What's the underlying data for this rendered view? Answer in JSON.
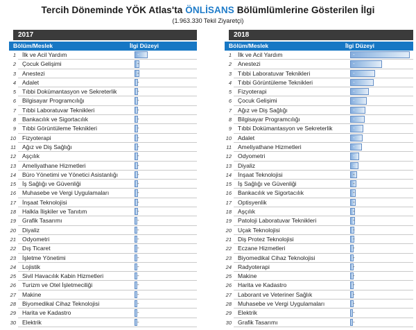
{
  "title": {
    "part1": "Tercih Döneminde YÖK Atlas'ta ",
    "accent": "ÖNLİSANS",
    "part2": " Bölümlümlerine Gösterilen İlgi"
  },
  "subtitle": "(1.963.330 Tekil Ziyaretçi)",
  "columns": {
    "department": "Bölüm/Meslek",
    "interest": "İlgi Düzeyi"
  },
  "value_placeholder": "-",
  "colors": {
    "accent": "#1F7CC9",
    "header_bg": "#1777C4",
    "year_bg": "#3B3B3B",
    "bar_border": "#638EC6",
    "row_line": "#C9C9C9"
  },
  "tables": [
    {
      "year": "2017",
      "rows": [
        {
          "rank": 1,
          "name": "İlk ve Acil Yardım",
          "pct": 21
        },
        {
          "rank": 2,
          "name": "Çocuk Gelişimi",
          "pct": 8
        },
        {
          "rank": 3,
          "name": "Anestezi",
          "pct": 8
        },
        {
          "rank": 4,
          "name": "Adalet",
          "pct": 5
        },
        {
          "rank": 5,
          "name": "Tıbbi Dokümantasyon ve Sekreterlik",
          "pct": 5
        },
        {
          "rank": 6,
          "name": "Bilgisayar Programcılığı",
          "pct": 5
        },
        {
          "rank": 7,
          "name": "Tıbbi Laboratuvar Teknikleri",
          "pct": 5
        },
        {
          "rank": 8,
          "name": "Bankacılık ve Sigortacılık",
          "pct": 5
        },
        {
          "rank": 9,
          "name": "Tıbbi Görüntüleme Teknikleri",
          "pct": 5
        },
        {
          "rank": 10,
          "name": "Fizyoterapi",
          "pct": 5
        },
        {
          "rank": 11,
          "name": "Ağız ve Diş Sağlığı",
          "pct": 5
        },
        {
          "rank": 12,
          "name": "Aşçılık",
          "pct": 5
        },
        {
          "rank": 13,
          "name": "Ameliyathane Hizmetleri",
          "pct": 5
        },
        {
          "rank": 14,
          "name": "Büro Yönetimi ve Yönetici Asistanlığı",
          "pct": 5
        },
        {
          "rank": 15,
          "name": "İş Sağlığı ve Güvenliği",
          "pct": 5
        },
        {
          "rank": 16,
          "name": "Muhasebe ve Vergi Uygulamaları",
          "pct": 5
        },
        {
          "rank": 17,
          "name": "İnşaat Teknolojisi",
          "pct": 5
        },
        {
          "rank": 18,
          "name": "Halkla İlişkiler ve Tanıtım",
          "pct": 5
        },
        {
          "rank": 19,
          "name": "Grafik Tasarımı",
          "pct": 4
        },
        {
          "rank": 20,
          "name": "Diyaliz",
          "pct": 4
        },
        {
          "rank": 21,
          "name": "Odyometri",
          "pct": 4
        },
        {
          "rank": 22,
          "name": "Dış Ticaret",
          "pct": 4
        },
        {
          "rank": 23,
          "name": "İşletme Yönetimi",
          "pct": 4
        },
        {
          "rank": 24,
          "name": "Lojistik",
          "pct": 4
        },
        {
          "rank": 25,
          "name": "Sivil Havacılık Kabin Hizmetleri",
          "pct": 4
        },
        {
          "rank": 26,
          "name": "Turizm ve Otel İşletmeciliği",
          "pct": 4
        },
        {
          "rank": 27,
          "name": "Makine",
          "pct": 4
        },
        {
          "rank": 28,
          "name": "Biyomedikal Cihaz Teknolojisi",
          "pct": 4
        },
        {
          "rank": 29,
          "name": "Harita ve Kadastro",
          "pct": 4
        },
        {
          "rank": 30,
          "name": "Elektrik",
          "pct": 4
        }
      ]
    },
    {
      "year": "2018",
      "rows": [
        {
          "rank": 1,
          "name": "İlk ve Acil Yardım",
          "pct": 94
        },
        {
          "rank": 2,
          "name": "Anestezi",
          "pct": 51
        },
        {
          "rank": 3,
          "name": "Tıbbi Laboratuvar Teknikleri",
          "pct": 40
        },
        {
          "rank": 4,
          "name": "Tıbbi Görüntüleme Teknikleri",
          "pct": 37
        },
        {
          "rank": 5,
          "name": "Fizyoterapi",
          "pct": 30
        },
        {
          "rank": 6,
          "name": "Çocuk Gelişimi",
          "pct": 26
        },
        {
          "rank": 7,
          "name": "Ağız ve Diş Sağlığı",
          "pct": 24
        },
        {
          "rank": 8,
          "name": "Bilgisayar Programcılığı",
          "pct": 23
        },
        {
          "rank": 9,
          "name": "Tıbbi Dokümantasyon ve Sekreterlik",
          "pct": 21
        },
        {
          "rank": 10,
          "name": "Adalet",
          "pct": 20
        },
        {
          "rank": 11,
          "name": "Ameliyathane Hizmetleri",
          "pct": 19
        },
        {
          "rank": 12,
          "name": "Odyometri",
          "pct": 14
        },
        {
          "rank": 13,
          "name": "Diyaliz",
          "pct": 13
        },
        {
          "rank": 14,
          "name": "İnşaat Teknolojisi",
          "pct": 11
        },
        {
          "rank": 15,
          "name": "İş Sağlığı ve Güvenliği",
          "pct": 10
        },
        {
          "rank": 16,
          "name": "Bankacılık ve Sigortacılık",
          "pct": 9
        },
        {
          "rank": 17,
          "name": "Optisyenlik",
          "pct": 9
        },
        {
          "rank": 18,
          "name": "Aşçılık",
          "pct": 8
        },
        {
          "rank": 19,
          "name": "Patoloji Laboratuvar Teknikleri",
          "pct": 8
        },
        {
          "rank": 20,
          "name": "Uçak Teknolojisi",
          "pct": 7
        },
        {
          "rank": 21,
          "name": "Diş Protez Teknolojisi",
          "pct": 7
        },
        {
          "rank": 22,
          "name": "Eczane Hizmetleri",
          "pct": 6
        },
        {
          "rank": 23,
          "name": "Biyomedikal Cihaz Teknolojisi",
          "pct": 6
        },
        {
          "rank": 24,
          "name": "Radyoterapi",
          "pct": 6
        },
        {
          "rank": 25,
          "name": "Makine",
          "pct": 5
        },
        {
          "rank": 26,
          "name": "Harita ve Kadastro",
          "pct": 5
        },
        {
          "rank": 27,
          "name": "Laborant ve Veteriner Sağlık",
          "pct": 5
        },
        {
          "rank": 28,
          "name": "Muhasebe ve Vergi Uygulamaları",
          "pct": 5
        },
        {
          "rank": 29,
          "name": "Elektrik",
          "pct": 4
        },
        {
          "rank": 30,
          "name": "Grafik Tasarımı",
          "pct": 4
        }
      ]
    }
  ],
  "chart_data": [
    {
      "type": "bar",
      "orientation": "horizontal",
      "title": "2017",
      "xlabel": "İlgi Düzeyi",
      "ylabel": "Bölüm/Meslek",
      "value_labels_shown": "-",
      "xlim": [
        0,
        100
      ],
      "categories": [
        "İlk ve Acil Yardım",
        "Çocuk Gelişimi",
        "Anestezi",
        "Adalet",
        "Tıbbi Dokümantasyon ve Sekreterlik",
        "Bilgisayar Programcılığı",
        "Tıbbi Laboratuvar Teknikleri",
        "Bankacılık ve Sigortacılık",
        "Tıbbi Görüntüleme Teknikleri",
        "Fizyoterapi",
        "Ağız ve Diş Sağlığı",
        "Aşçılık",
        "Ameliyathane Hizmetleri",
        "Büro Yönetimi ve Yönetici Asistanlığı",
        "İş Sağlığı ve Güvenliği",
        "Muhasebe ve Vergi Uygulamaları",
        "İnşaat Teknolojisi",
        "Halkla İlişkiler ve Tanıtım",
        "Grafik Tasarımı",
        "Diyaliz",
        "Odyometri",
        "Dış Ticaret",
        "İşletme Yönetimi",
        "Lojistik",
        "Sivil Havacılık Kabin Hizmetleri",
        "Turizm ve Otel İşletmeciliği",
        "Makine",
        "Biyomedikal Cihaz Teknolojisi",
        "Harita ve Kadastro",
        "Elektrik"
      ],
      "values": [
        21,
        8,
        8,
        5,
        5,
        5,
        5,
        5,
        5,
        5,
        5,
        5,
        5,
        5,
        5,
        5,
        5,
        5,
        4,
        4,
        4,
        4,
        4,
        4,
        4,
        4,
        4,
        4,
        4,
        4
      ]
    },
    {
      "type": "bar",
      "orientation": "horizontal",
      "title": "2018",
      "xlabel": "İlgi Düzeyi",
      "ylabel": "Bölüm/Meslek",
      "value_labels_shown": "-",
      "xlim": [
        0,
        100
      ],
      "categories": [
        "İlk ve Acil Yardım",
        "Anestezi",
        "Tıbbi Laboratuvar Teknikleri",
        "Tıbbi Görüntüleme Teknikleri",
        "Fizyoterapi",
        "Çocuk Gelişimi",
        "Ağız ve Diş Sağlığı",
        "Bilgisayar Programcılığı",
        "Tıbbi Dokümantasyon ve Sekreterlik",
        "Adalet",
        "Ameliyathane Hizmetleri",
        "Odyometri",
        "Diyaliz",
        "İnşaat Teknolojisi",
        "İş Sağlığı ve Güvenliği",
        "Bankacılık ve Sigortacılık",
        "Optisyenlik",
        "Aşçılık",
        "Patoloji Laboratuvar Teknikleri",
        "Uçak Teknolojisi",
        "Diş Protez Teknolojisi",
        "Eczane Hizmetleri",
        "Biyomedikal Cihaz Teknolojisi",
        "Radyoterapi",
        "Makine",
        "Harita ve Kadastro",
        "Laborant ve Veteriner Sağlık",
        "Muhasebe ve Vergi Uygulamaları",
        "Elektrik",
        "Grafik Tasarımı"
      ],
      "values": [
        94,
        51,
        40,
        37,
        30,
        26,
        24,
        23,
        21,
        20,
        19,
        14,
        13,
        11,
        10,
        9,
        9,
        8,
        8,
        7,
        7,
        6,
        6,
        6,
        5,
        5,
        5,
        5,
        4,
        4
      ]
    }
  ]
}
